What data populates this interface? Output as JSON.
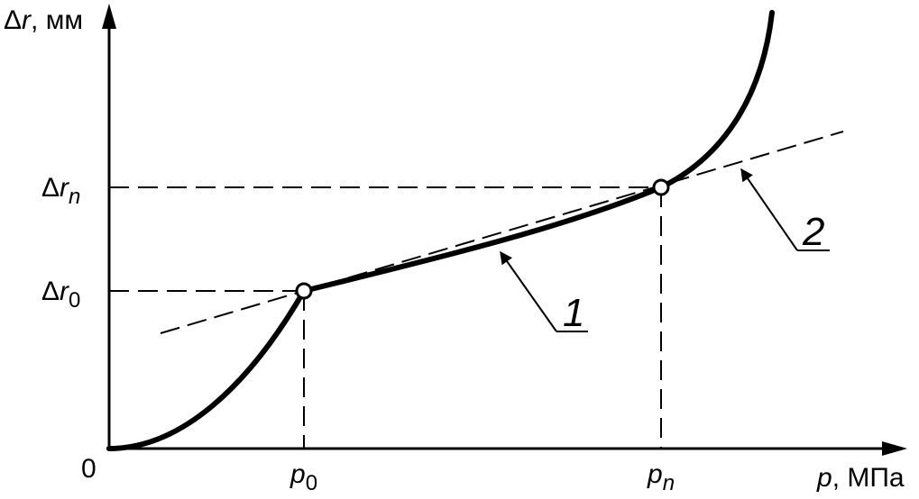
{
  "diagram": {
    "y_axis": {
      "symbol": "Δ",
      "variable": "r",
      "unit": ", мм"
    },
    "x_axis": {
      "variable": "p",
      "unit": ", МПа"
    },
    "origin_label": "0",
    "x_ticks": [
      {
        "base": "p",
        "sub": "0"
      },
      {
        "base": "p",
        "sub": "n"
      }
    ],
    "y_ticks": [
      {
        "symbol": "Δ",
        "base": "r",
        "sub": "0"
      },
      {
        "symbol": "Δ",
        "base": "r",
        "sub": "n"
      }
    ],
    "callouts": [
      {
        "label": "1",
        "refers_to": "curve"
      },
      {
        "label": "2",
        "refers_to": "tangent-line"
      }
    ],
    "colors": {
      "ink": "#000000",
      "background": "#ffffff"
    }
  }
}
